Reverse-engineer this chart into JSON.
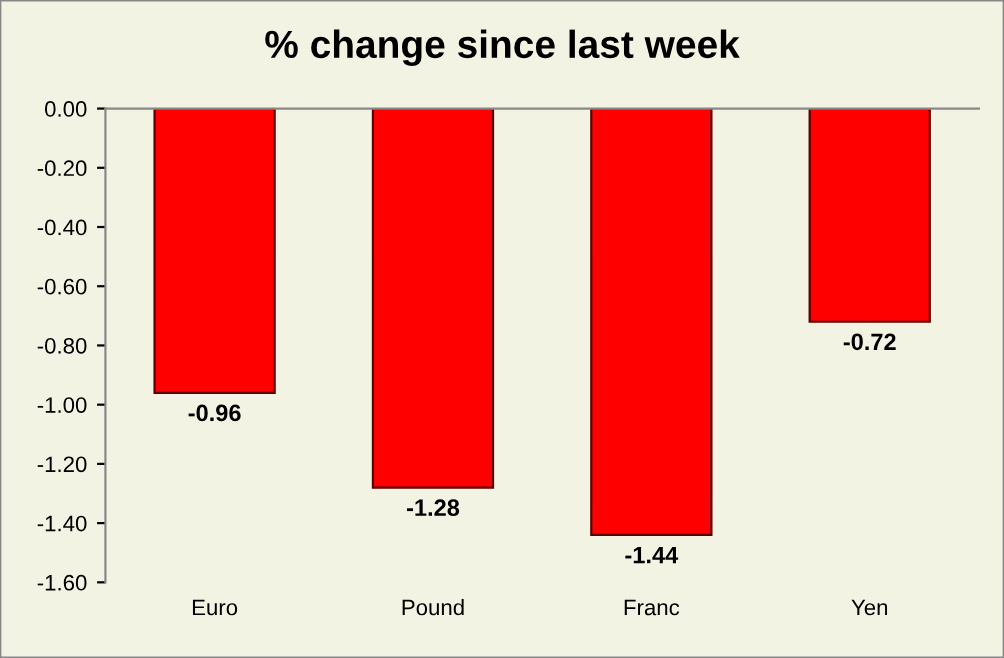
{
  "chart_data": {
    "type": "bar",
    "title": "% change since last week",
    "categories": [
      "Euro",
      "Pound",
      "Franc",
      "Yen"
    ],
    "values": [
      -0.96,
      -1.28,
      -1.44,
      -0.72
    ],
    "color": "#ff0000",
    "ylim": [
      -1.6,
      0
    ],
    "yticks": [
      {
        "value": 0,
        "label": "0.00"
      },
      {
        "value": -0.2,
        "label": "-0.20"
      },
      {
        "value": -0.4,
        "label": "-0.40"
      },
      {
        "value": -0.6,
        "label": "-0.60"
      },
      {
        "value": -0.8,
        "label": "-0.80"
      },
      {
        "value": -1.0,
        "label": "-1.00"
      },
      {
        "value": -1.2,
        "label": "-1.20"
      },
      {
        "value": -1.4,
        "label": "-1.40"
      },
      {
        "value": -1.6,
        "label": "-1.60"
      }
    ],
    "value_labels": [
      "-0.96",
      "-1.28",
      "-1.44",
      "-0.72"
    ],
    "grid": false,
    "legend": false
  }
}
